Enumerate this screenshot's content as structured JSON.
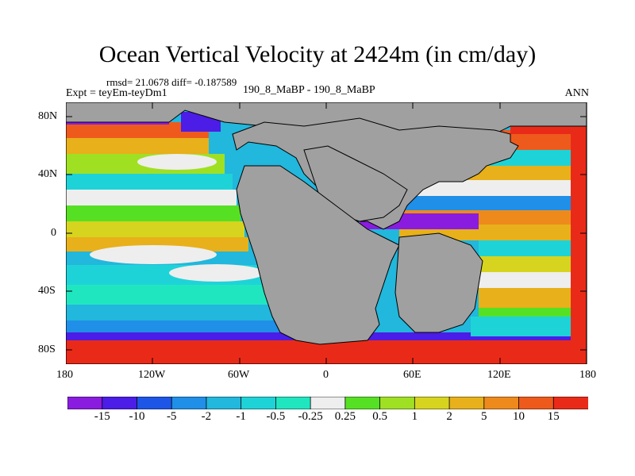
{
  "header": {
    "title": "Ocean Vertical Velocity at 2424m (in cm/day)",
    "stats": "rmsd= 21.0678 diff= -0.187589",
    "expt": "Expt = teyEm-teyDm1",
    "case": "190_8_MaBP - 190_8_MaBP",
    "season": "ANN"
  },
  "axes": {
    "lat_labels": [
      "80N",
      "40N",
      "0",
      "40S",
      "80S"
    ],
    "lat_values": [
      80,
      40,
      0,
      -40,
      -80
    ],
    "lon_labels": [
      "180",
      "120W",
      "60W",
      "0",
      "60E",
      "120E",
      "180"
    ],
    "lon_values": [
      -180,
      -120,
      -60,
      0,
      60,
      120,
      180
    ],
    "lon_range": [
      -180,
      180
    ],
    "lat_range": [
      -90,
      90
    ]
  },
  "colorbar": {
    "labels": [
      "-15",
      "-10",
      "-5",
      "-2",
      "-1",
      "-0.5",
      "-0.25",
      "0.25",
      "0.5",
      "1",
      "2",
      "5",
      "10",
      "15"
    ],
    "colors": [
      "#8a1ce0",
      "#4b1de6",
      "#1d55e6",
      "#1f8fe8",
      "#22b7dc",
      "#1ed3d8",
      "#20e6c0",
      "#eeeeee",
      "#56e024",
      "#9fe023",
      "#d7d41f",
      "#e8b01a",
      "#ee8a1c",
      "#ee5a1c",
      "#ea2a18"
    ],
    "land_color": "#a0a0a0"
  }
}
